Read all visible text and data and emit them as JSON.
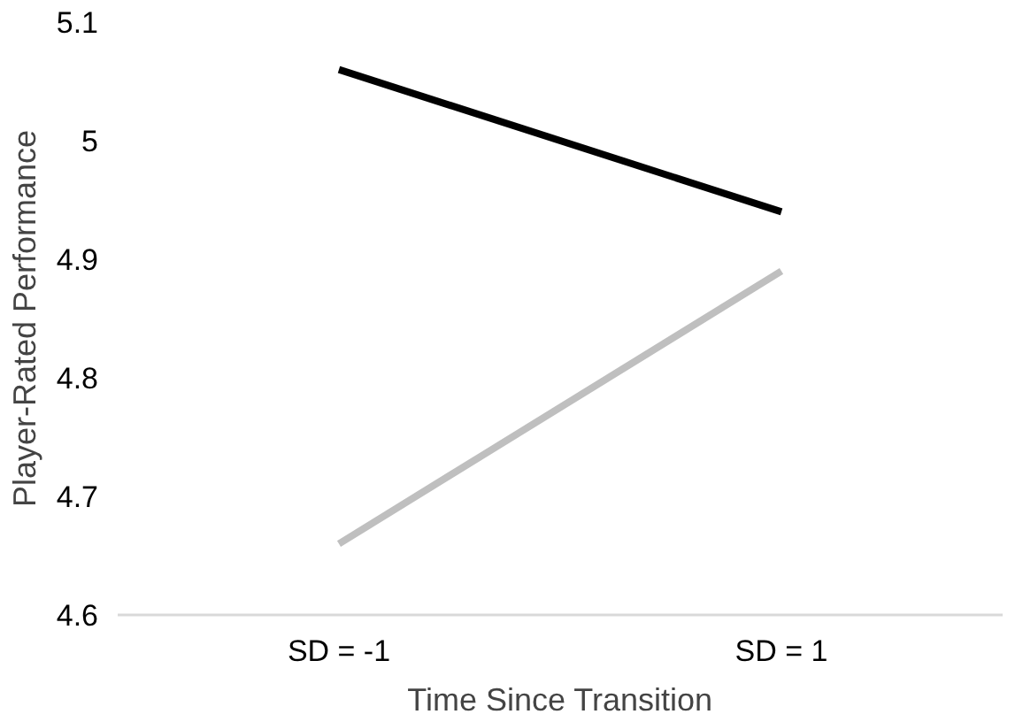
{
  "chart_data": {
    "type": "line",
    "xlabel": "Time Since Transition",
    "ylabel": "Player-Rated Performance",
    "categories": [
      "SD = -1",
      "SD = 1"
    ],
    "series": [
      {
        "color": "#000000",
        "values": [
          5.06,
          4.94
        ]
      },
      {
        "color": "#bfbfbf",
        "values": [
          4.66,
          4.89
        ]
      }
    ],
    "ylim": [
      4.6,
      5.1
    ],
    "yticks": [
      {
        "value": 4.6,
        "label": "4.6"
      },
      {
        "value": 4.7,
        "label": "4.7"
      },
      {
        "value": 4.8,
        "label": "4.8"
      },
      {
        "value": 4.9,
        "label": "4.9"
      },
      {
        "value": 5.0,
        "label": "5"
      },
      {
        "value": 5.1,
        "label": "5.1"
      }
    ],
    "marker": "none",
    "line_style": "solid"
  }
}
